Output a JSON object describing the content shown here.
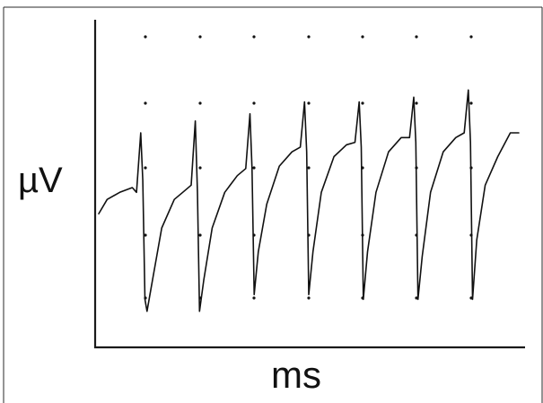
{
  "chart_data": {
    "type": "line",
    "title": "",
    "xlabel": "ms",
    "ylabel": "µV",
    "grid": "dotted",
    "legend": "none",
    "xlim": [
      0,
      1
    ],
    "ylim": [
      0,
      1
    ],
    "series": [
      {
        "x": [
          0.0,
          0.02,
          0.05,
          0.08,
          0.09,
          0.1,
          0.105,
          0.11,
          0.115,
          0.13,
          0.15,
          0.18,
          0.2,
          0.22,
          0.23,
          0.235,
          0.24,
          0.25,
          0.27,
          0.3,
          0.33,
          0.35,
          0.36,
          0.365,
          0.37,
          0.38,
          0.4,
          0.43,
          0.46,
          0.48,
          0.49,
          0.495,
          0.5,
          0.51,
          0.53,
          0.56,
          0.59,
          0.61,
          0.62,
          0.625,
          0.63,
          0.64,
          0.66,
          0.69,
          0.72,
          0.74,
          0.75,
          0.755,
          0.76,
          0.77,
          0.79,
          0.82,
          0.85,
          0.87,
          0.88,
          0.885,
          0.89,
          0.9,
          0.92,
          0.95,
          0.98,
          1.0
        ],
        "y": [
          0.46,
          0.52,
          0.55,
          0.57,
          0.55,
          0.8,
          0.6,
          0.1,
          0.05,
          0.2,
          0.4,
          0.52,
          0.55,
          0.58,
          0.85,
          0.55,
          0.05,
          0.18,
          0.4,
          0.55,
          0.62,
          0.65,
          0.88,
          0.65,
          0.12,
          0.3,
          0.5,
          0.66,
          0.72,
          0.74,
          0.93,
          0.72,
          0.12,
          0.3,
          0.55,
          0.7,
          0.75,
          0.76,
          0.93,
          0.74,
          0.1,
          0.3,
          0.55,
          0.72,
          0.78,
          0.78,
          0.95,
          0.76,
          0.1,
          0.28,
          0.55,
          0.72,
          0.78,
          0.8,
          0.98,
          0.76,
          0.1,
          0.35,
          0.58,
          0.7,
          0.8,
          0.8
        ]
      }
    ]
  }
}
